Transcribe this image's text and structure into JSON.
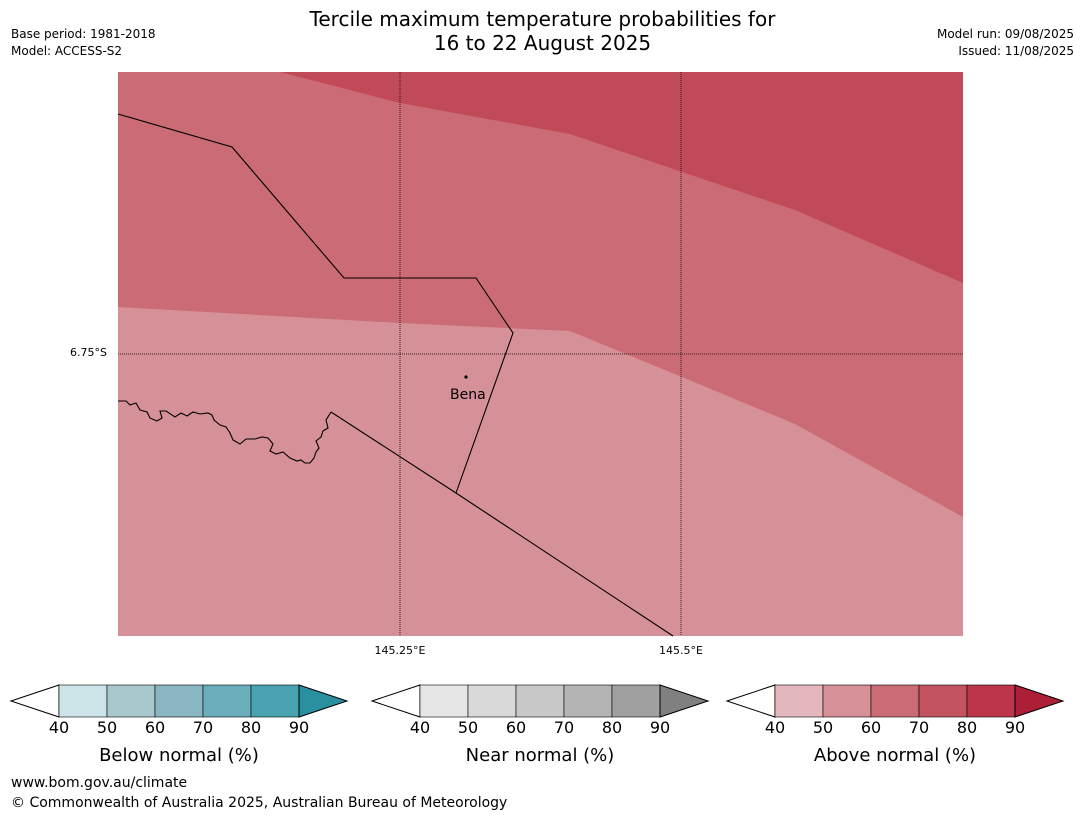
{
  "header": {
    "title_line1": "Tercile maximum temperature probabilities for",
    "title_line2": "16 to 22 August 2025",
    "base_period": "Base period: 1981-2018",
    "model": "Model: ACCESS-S2",
    "model_run": "Model run: 09/08/2025",
    "issued": "Issued: 11/08/2025"
  },
  "map": {
    "lat_label": "6.75°S",
    "lon_labels": [
      "145.25°E",
      "145.5°E"
    ],
    "place": "Bena",
    "zone_colors": {
      "above_50_60": "#d69097",
      "above_60_70": "#cb6b75",
      "above_70_80": "#c04a57"
    }
  },
  "legends": [
    {
      "name": "below-normal",
      "title": "Below normal (%)",
      "ticks": [
        "40",
        "50",
        "60",
        "70",
        "80",
        "90"
      ],
      "colors": [
        "#ffffff",
        "#cce3e8",
        "#a9c8ce",
        "#89b6c2",
        "#6aaebb",
        "#48a2af",
        "#2a909f"
      ]
    },
    {
      "name": "near-normal",
      "title": "Near normal (%)",
      "ticks": [
        "40",
        "50",
        "60",
        "70",
        "80",
        "90"
      ],
      "colors": [
        "#ffffff",
        "#e6e6e6",
        "#d9d9d9",
        "#c8c8c8",
        "#b4b4b4",
        "#a0a0a0",
        "#808080"
      ]
    },
    {
      "name": "above-normal",
      "title": "Above normal (%)",
      "ticks": [
        "40",
        "50",
        "60",
        "70",
        "80",
        "90"
      ],
      "colors": [
        "#ffffff",
        "#e3b7bd",
        "#d69097",
        "#cb6b75",
        "#c3535f",
        "#bd3549",
        "#ac1f37"
      ]
    }
  ],
  "footer": {
    "url": "www.bom.gov.au/climate",
    "copyright": "© Commonwealth of Australia 2025, Australian Bureau of Meteorology"
  }
}
